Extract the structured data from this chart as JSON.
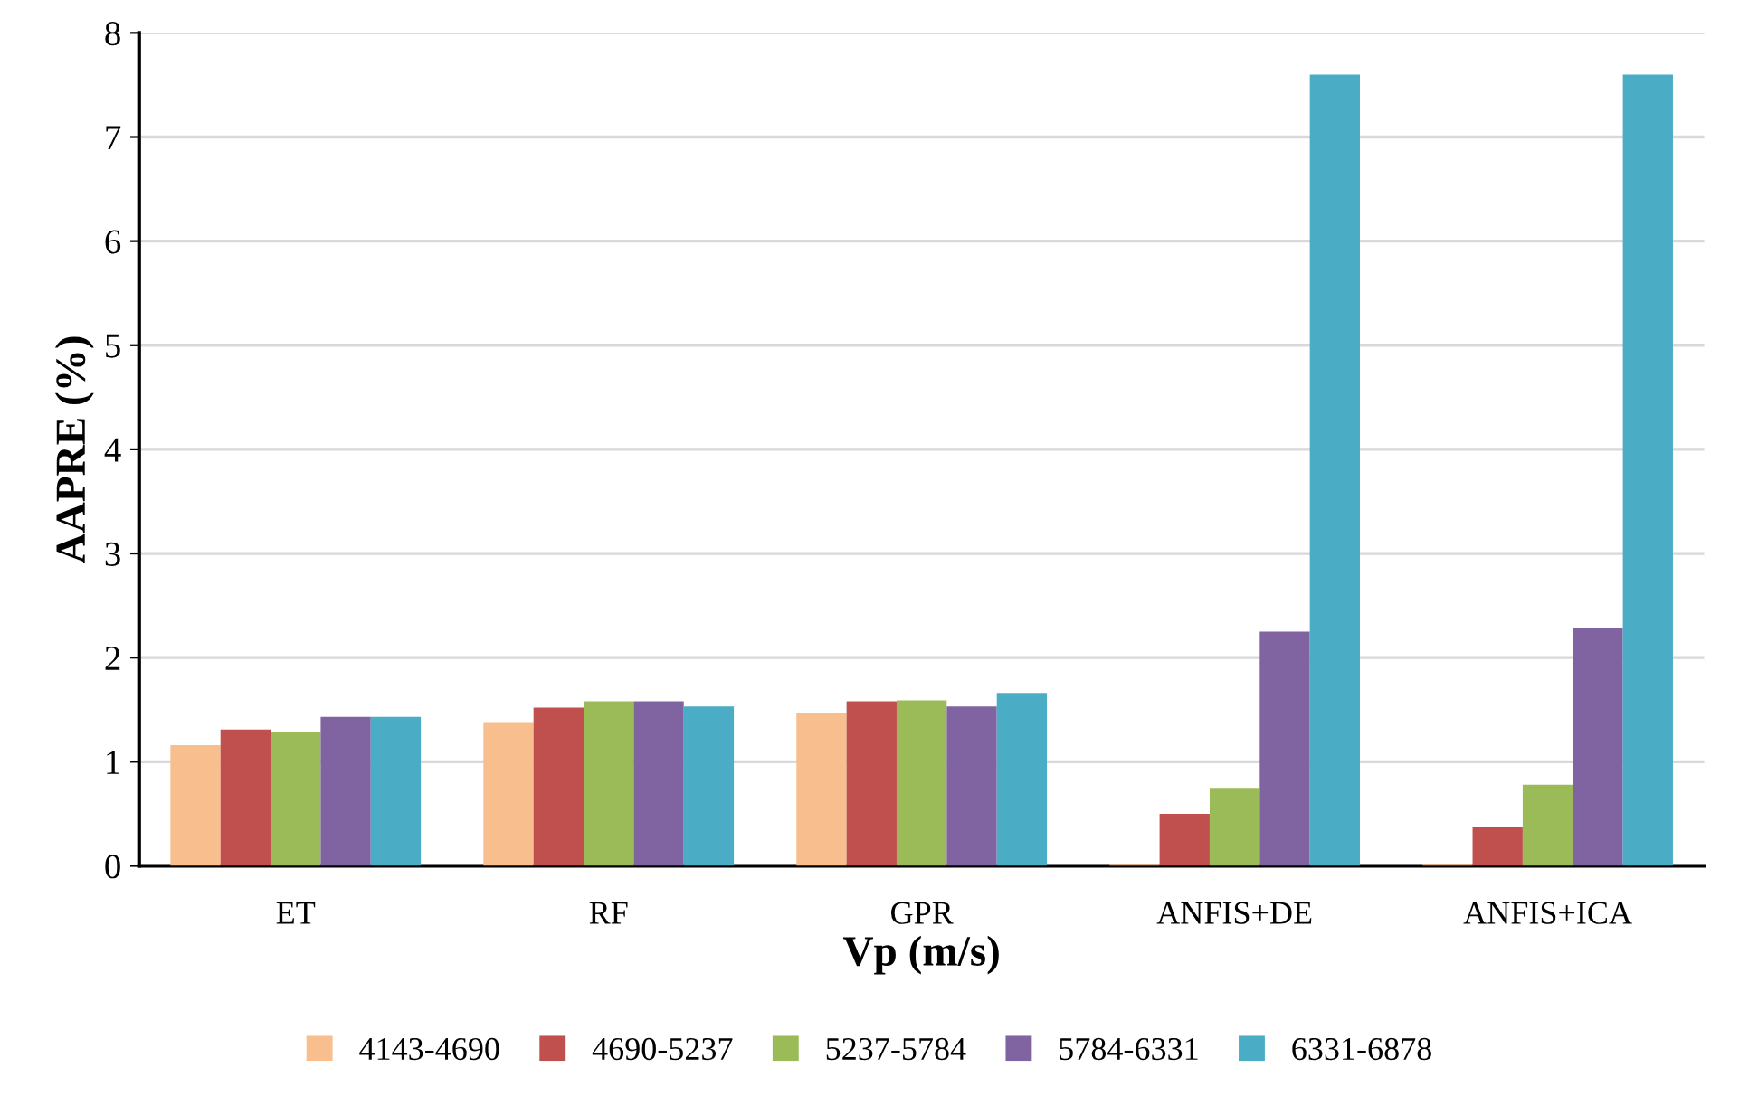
{
  "chart_data": {
    "type": "bar",
    "xlabel": "Vp (m/s)",
    "ylabel": "AAPRE (%)",
    "categories": [
      "ET",
      "RF",
      "GPR",
      "ANFIS+DE",
      "ANFIS+ICA"
    ],
    "series": [
      {
        "name": "4143-4690",
        "color": "#f9be8e",
        "values": [
          1.16,
          1.38,
          1.47,
          0.02,
          0.02
        ]
      },
      {
        "name": "4690-5237",
        "color": "#c0504d",
        "values": [
          1.31,
          1.52,
          1.58,
          0.5,
          0.37
        ]
      },
      {
        "name": "5237-5784",
        "color": "#9bbb59",
        "values": [
          1.29,
          1.58,
          1.59,
          0.75,
          0.78
        ]
      },
      {
        "name": "5784-6331",
        "color": "#8064a2",
        "values": [
          1.43,
          1.58,
          1.53,
          2.25,
          2.28
        ]
      },
      {
        "name": "6331-6878",
        "color": "#4bacc6",
        "values": [
          1.43,
          1.53,
          1.66,
          7.6,
          7.6
        ]
      }
    ],
    "ylim": [
      0,
      8
    ],
    "yticks": [
      0,
      1,
      2,
      3,
      4,
      5,
      6,
      7,
      8
    ],
    "grid": "y",
    "legend": "bottom"
  }
}
